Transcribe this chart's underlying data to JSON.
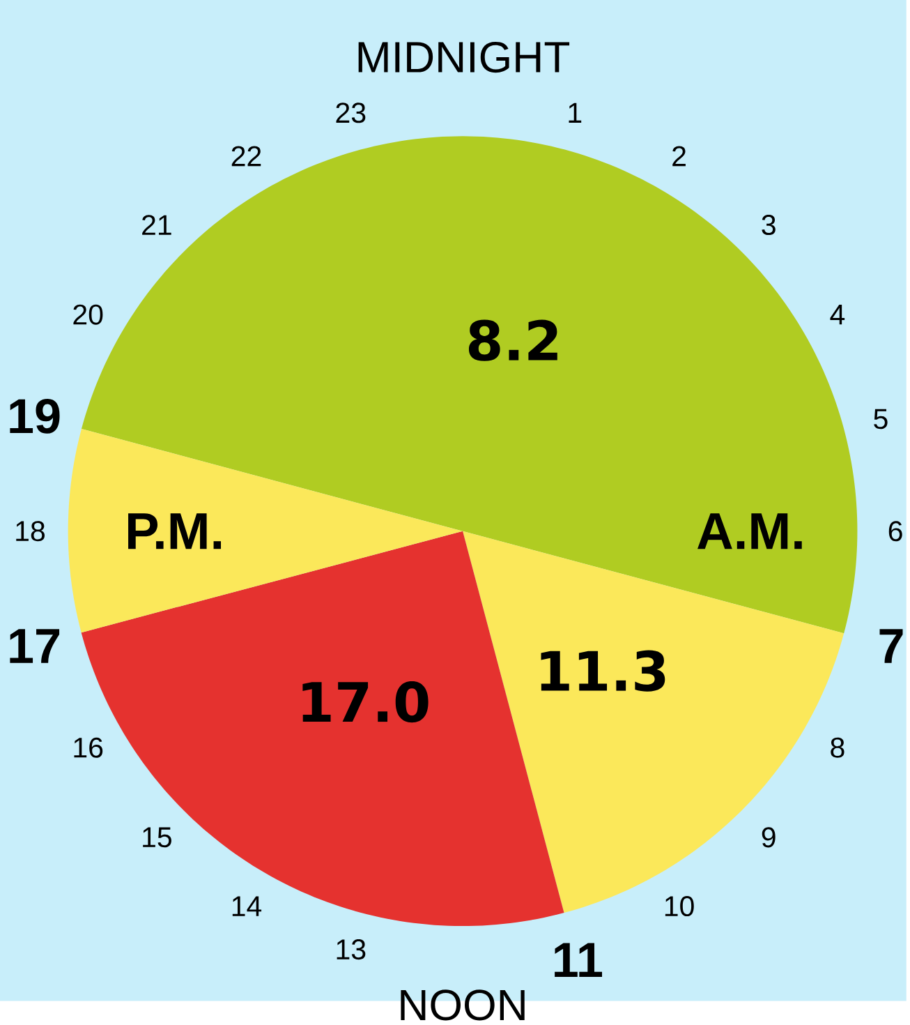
{
  "chart_data": {
    "type": "pie",
    "categories": [
      "8.2",
      "11.3",
      "17.0",
      null
    ],
    "values": [
      50,
      16.7,
      25,
      8.3
    ],
    "colors": [
      "#b0cc22",
      "#fbe85a",
      "#e5322f",
      "#fbe85a"
    ],
    "annotations": [
      "A.M.",
      "P.M.",
      "MIDNIGHT",
      "1",
      "2",
      "3",
      "4",
      "5",
      "6",
      "7",
      "8",
      "9",
      "10",
      "11",
      "NOON",
      "13",
      "14",
      "15",
      "16",
      "17",
      "18",
      "19",
      "20",
      "21",
      "22",
      "23"
    ]
  }
}
